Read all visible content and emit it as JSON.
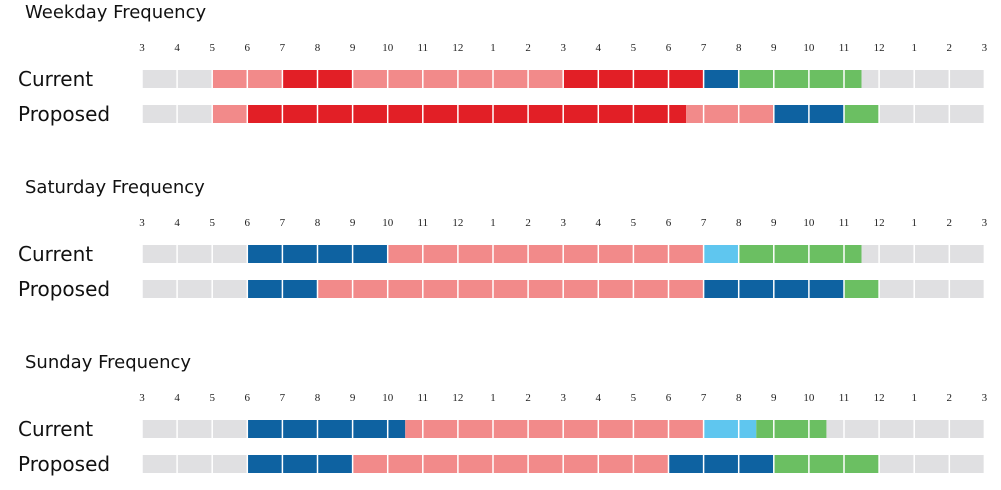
{
  "colors": {
    "gray": "#e0e0e2",
    "pink": "#f28a8a",
    "red": "#e21f26",
    "blue": "#0e62a1",
    "lightblue": "#5fc6ef",
    "green": "#6bbf62"
  },
  "chart_data": {
    "type": "timeline",
    "hour_ticks": [
      "3",
      "4",
      "5",
      "6",
      "7",
      "8",
      "9",
      "10",
      "11",
      "12",
      "1",
      "2",
      "3",
      "4",
      "5",
      "6",
      "7",
      "8",
      "9",
      "10",
      "11",
      "12",
      "1",
      "2",
      "3"
    ],
    "sections": [
      {
        "title": "Weekday Frequency",
        "rows": [
          {
            "label": "Current",
            "segments": [
              {
                "start": 3,
                "end": 5,
                "color": "gray"
              },
              {
                "start": 5,
                "end": 7,
                "color": "pink"
              },
              {
                "start": 7,
                "end": 9,
                "color": "red"
              },
              {
                "start": 9,
                "end": 15,
                "color": "pink"
              },
              {
                "start": 15,
                "end": 19,
                "color": "red"
              },
              {
                "start": 19,
                "end": 20,
                "color": "blue"
              },
              {
                "start": 20,
                "end": 23.5,
                "color": "green"
              },
              {
                "start": 23.5,
                "end": 27,
                "color": "gray"
              }
            ]
          },
          {
            "label": "Proposed",
            "segments": [
              {
                "start": 3,
                "end": 5,
                "color": "gray"
              },
              {
                "start": 5,
                "end": 6,
                "color": "pink"
              },
              {
                "start": 6,
                "end": 18.5,
                "color": "red"
              },
              {
                "start": 18.5,
                "end": 21,
                "color": "pink"
              },
              {
                "start": 21,
                "end": 23,
                "color": "blue"
              },
              {
                "start": 23,
                "end": 24,
                "color": "green"
              },
              {
                "start": 24,
                "end": 27,
                "color": "gray"
              }
            ]
          }
        ]
      },
      {
        "title": "Saturday Frequency",
        "rows": [
          {
            "label": "Current",
            "segments": [
              {
                "start": 3,
                "end": 6,
                "color": "gray"
              },
              {
                "start": 6,
                "end": 10,
                "color": "blue"
              },
              {
                "start": 10,
                "end": 19,
                "color": "pink"
              },
              {
                "start": 19,
                "end": 20,
                "color": "lightblue"
              },
              {
                "start": 20,
                "end": 23.5,
                "color": "green"
              },
              {
                "start": 23.5,
                "end": 27,
                "color": "gray"
              }
            ]
          },
          {
            "label": "Proposed",
            "segments": [
              {
                "start": 3,
                "end": 6,
                "color": "gray"
              },
              {
                "start": 6,
                "end": 8,
                "color": "blue"
              },
              {
                "start": 8,
                "end": 19,
                "color": "pink"
              },
              {
                "start": 19,
                "end": 23,
                "color": "blue"
              },
              {
                "start": 23,
                "end": 24,
                "color": "green"
              },
              {
                "start": 24,
                "end": 27,
                "color": "gray"
              }
            ]
          }
        ]
      },
      {
        "title": "Sunday Frequency",
        "rows": [
          {
            "label": "Current",
            "segments": [
              {
                "start": 3,
                "end": 6,
                "color": "gray"
              },
              {
                "start": 6,
                "end": 10.5,
                "color": "blue"
              },
              {
                "start": 10.5,
                "end": 19,
                "color": "pink"
              },
              {
                "start": 19,
                "end": 20.5,
                "color": "lightblue"
              },
              {
                "start": 20.5,
                "end": 22.5,
                "color": "green"
              },
              {
                "start": 22.5,
                "end": 27,
                "color": "gray"
              }
            ]
          },
          {
            "label": "Proposed",
            "segments": [
              {
                "start": 3,
                "end": 6,
                "color": "gray"
              },
              {
                "start": 6,
                "end": 9,
                "color": "blue"
              },
              {
                "start": 9,
                "end": 18,
                "color": "pink"
              },
              {
                "start": 18,
                "end": 21,
                "color": "blue"
              },
              {
                "start": 21,
                "end": 24,
                "color": "green"
              },
              {
                "start": 24,
                "end": 27,
                "color": "gray"
              }
            ]
          }
        ]
      }
    ]
  }
}
